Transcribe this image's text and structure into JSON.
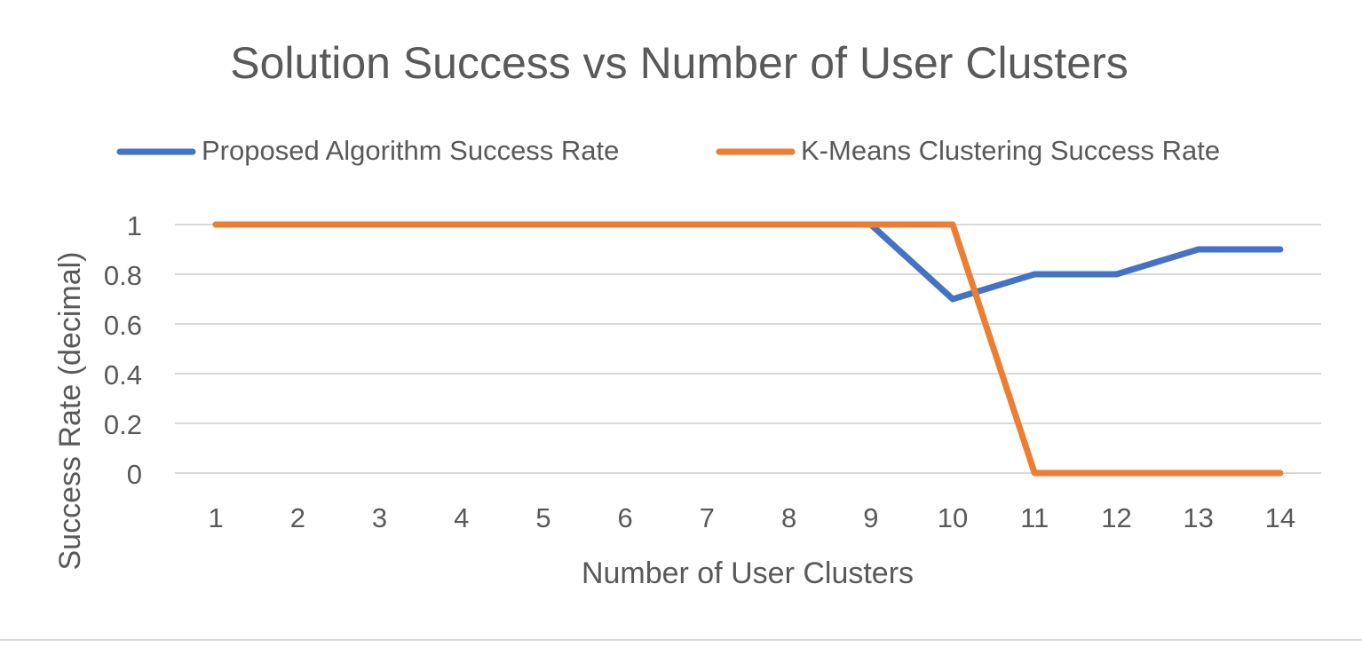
{
  "chart_data": {
    "type": "line",
    "title": "Solution Success vs Number of User Clusters",
    "xlabel": "Number of User Clusters",
    "ylabel": "Success Rate (decimal)",
    "categories": [
      "1",
      "2",
      "3",
      "4",
      "5",
      "6",
      "7",
      "8",
      "9",
      "10",
      "11",
      "12",
      "13",
      "14"
    ],
    "yticks": [
      "0",
      "0.2",
      "0.4",
      "0.6",
      "0.8",
      "1"
    ],
    "ylim": [
      0,
      1
    ],
    "grid": true,
    "legend_position": "top",
    "series": [
      {
        "name": "Proposed Algorithm Success Rate",
        "color": "#4472c4",
        "values": [
          1,
          1,
          1,
          1,
          1,
          1,
          1,
          1,
          1,
          0.7,
          0.8,
          0.8,
          0.9,
          0.9
        ]
      },
      {
        "name": "K-Means Clustering Success Rate",
        "color": "#ed7d31",
        "values": [
          1,
          1,
          1,
          1,
          1,
          1,
          1,
          1,
          1,
          1,
          0,
          0,
          0,
          0
        ]
      }
    ]
  }
}
